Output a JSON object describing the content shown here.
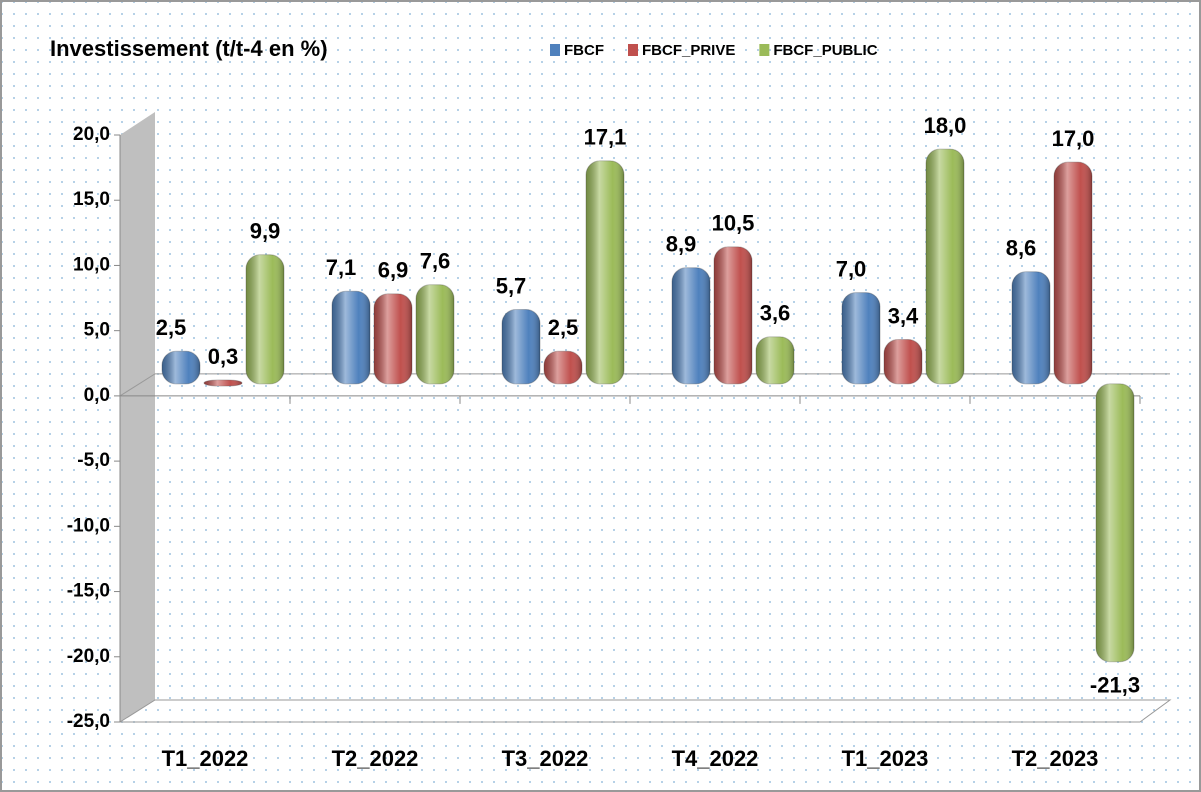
{
  "chart_data": {
    "type": "bar",
    "title": "Investissement (t/t-4 en %)",
    "categories": [
      "T1_2022",
      "T2_2022",
      "T3_2022",
      "T4_2022",
      "T1_2023",
      "T2_2023"
    ],
    "series": [
      {
        "name": "FBCF",
        "color": "#4f81bd",
        "values": [
          2.5,
          7.1,
          5.7,
          8.9,
          7.0,
          8.6
        ],
        "value_labels": [
          "2,5",
          "7,1",
          "5,7",
          "8,9",
          "7,0",
          "8,6"
        ]
      },
      {
        "name": "FBCF_PRIVE",
        "color": "#c0504d",
        "values": [
          0.3,
          6.9,
          2.5,
          10.5,
          3.4,
          17.0
        ],
        "value_labels": [
          "0,3",
          "6,9",
          "2,5",
          "10,5",
          "3,4",
          "17,0"
        ]
      },
      {
        "name": "FBCF_PUBLIC",
        "color": "#9bbb59",
        "values": [
          9.9,
          7.6,
          17.1,
          3.6,
          18.0,
          -21.3
        ],
        "value_labels": [
          "9,9",
          "7,6",
          "17,1",
          "3,6",
          "18,0",
          "-21,3"
        ]
      }
    ],
    "ylim": [
      -25,
      20
    ],
    "yticks": [
      {
        "value": -25,
        "label": "-25,0"
      },
      {
        "value": -20,
        "label": "-20,0"
      },
      {
        "value": -15,
        "label": "-15,0"
      },
      {
        "value": -10,
        "label": "-10,0"
      },
      {
        "value": -5,
        "label": "-5,0"
      },
      {
        "value": 0,
        "label": "0,0"
      },
      {
        "value": 5,
        "label": "5,0"
      },
      {
        "value": 10,
        "label": "10,0"
      },
      {
        "value": 15,
        "label": "15,0"
      },
      {
        "value": 20,
        "label": "20,0"
      }
    ],
    "legend": "top"
  }
}
